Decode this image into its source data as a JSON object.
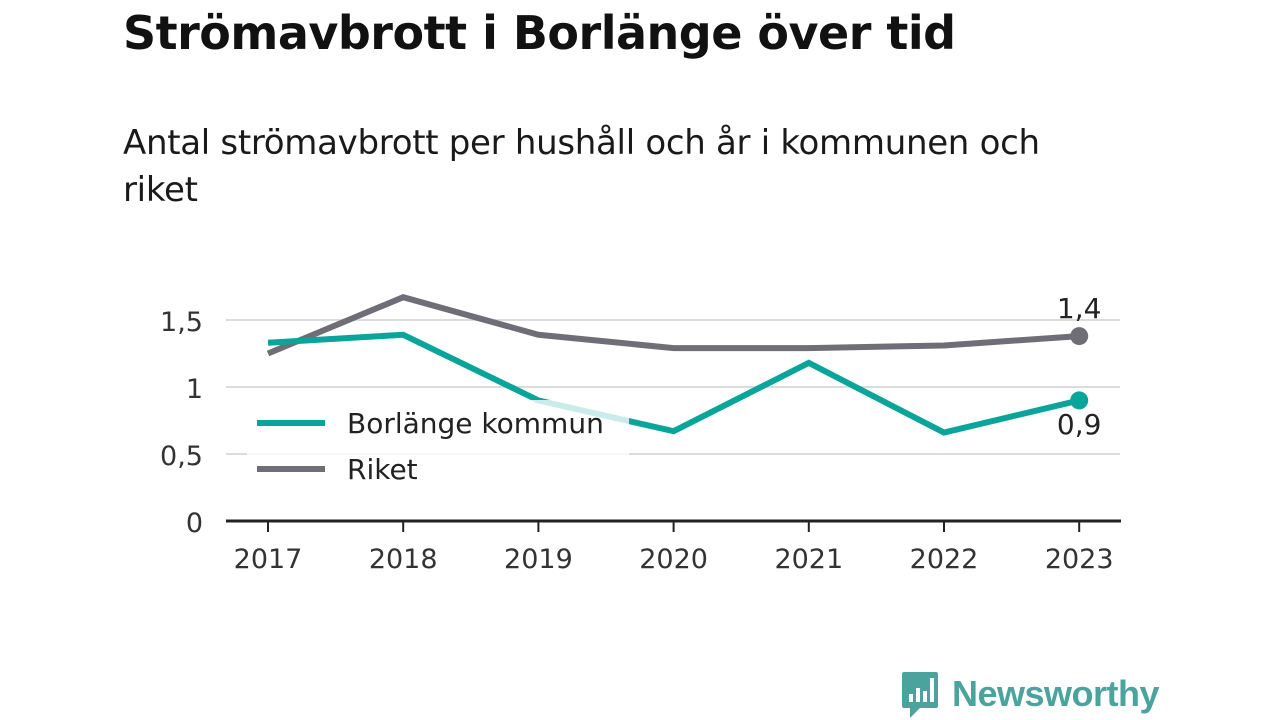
{
  "title": "Strömavbrott i Borlänge över tid",
  "subtitle": "Antal strömavbrott per hushåll och år i kommunen och riket",
  "brand": {
    "name": "Newsworthy",
    "color": "#4aa39c"
  },
  "chart_data": {
    "type": "line",
    "categories": [
      "2017",
      "2018",
      "2019",
      "2020",
      "2021",
      "2022",
      "2023"
    ],
    "series": [
      {
        "name": "Borlänge kommun",
        "color": "#0aa59a",
        "values": [
          1.33,
          1.39,
          0.9,
          0.67,
          1.18,
          0.66,
          0.9
        ]
      },
      {
        "name": "Riket",
        "color": "#6f6e76",
        "values": [
          1.25,
          1.67,
          1.39,
          1.29,
          1.29,
          1.31,
          1.38
        ]
      }
    ],
    "yticks": [
      {
        "value": 0,
        "label": "0"
      },
      {
        "value": 0.5,
        "label": "0,5"
      },
      {
        "value": 1,
        "label": "1"
      },
      {
        "value": 1.5,
        "label": "1,5"
      }
    ],
    "ylim": [
      0,
      1.7
    ],
    "end_labels": [
      "0,9",
      "1,4"
    ],
    "legend_position": "bottom-left",
    "grid": true,
    "xlabel": "",
    "ylabel": ""
  }
}
